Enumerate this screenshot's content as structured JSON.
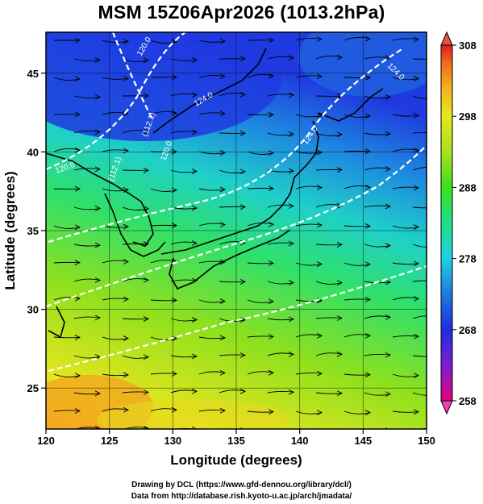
{
  "title": "MSM 15Z06Apr2026 (1013.2hPa)",
  "x_axis": {
    "title": "Longitude (degrees)",
    "ticks": [
      "120",
      "125",
      "130",
      "135",
      "140",
      "145",
      "150"
    ],
    "range": [
      120,
      150
    ]
  },
  "y_axis": {
    "title": "Latitude  (degrees)",
    "ticks": [
      "25",
      "30",
      "35",
      "40",
      "45"
    ],
    "range": [
      22.4,
      47.6
    ]
  },
  "colorbar": {
    "labels": [
      "308",
      "298",
      "288",
      "278",
      "268",
      "258"
    ],
    "range": [
      258,
      308
    ],
    "colors": [
      "#e6007e",
      "#7a1fd0",
      "#1f2ee0",
      "#1e7be0",
      "#1fd0e0",
      "#1ee08a",
      "#3ce01e",
      "#a8e01e",
      "#e6e61e",
      "#f2b21e",
      "#f26a1e",
      "#e01e1e"
    ]
  },
  "contour_labels": [
    "(112.1)",
    "120.0",
    "124.0",
    "124.0",
    "124.0",
    "(112.1)",
    "120.0",
    "120.0"
  ],
  "credits": {
    "line1": "Drawing by DCL (https://www.gfd-dennou.org/library/dcl/)",
    "line2": "Data from http://database.rish.kyoto-u.ac.jp/arch/jmadata/"
  }
}
